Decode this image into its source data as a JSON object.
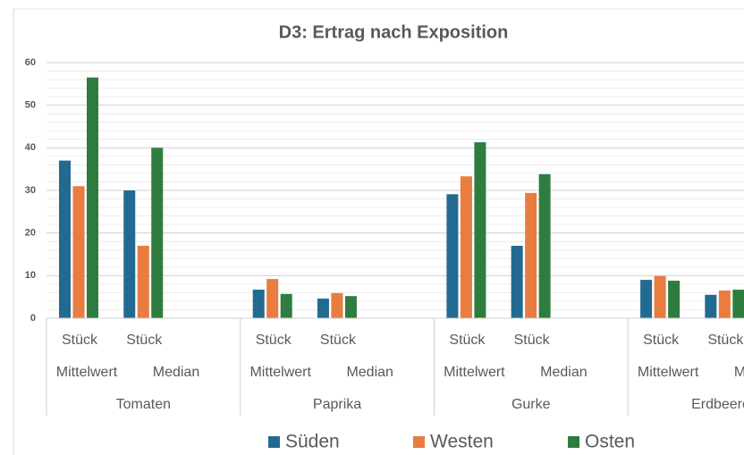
{
  "chart_data": {
    "type": "bar",
    "title": "D3: Ertrag nach Exposition",
    "category_levels": {
      "unit": [
        "Stück",
        "Stück",
        "Stück",
        "Stück",
        "Stück",
        "Stück",
        "Stück",
        "Stück"
      ],
      "stat": [
        "Mittelwert",
        "Median",
        "Mittelwert",
        "Median",
        "Mittelwert",
        "Median",
        "Mittelwert",
        "Median"
      ],
      "group": [
        "Tomaten",
        "Paprika",
        "Gurke",
        "Erdbeeren"
      ]
    },
    "series": [
      {
        "name": "Süden",
        "color": "#236a91",
        "values": [
          37,
          30,
          6.7,
          4.6,
          29.1,
          17,
          9,
          5.5
        ]
      },
      {
        "name": "Westen",
        "color": "#e97c3f",
        "values": [
          31,
          17,
          9.2,
          5.9,
          33.3,
          29.4,
          9.9,
          6.5
        ]
      },
      {
        "name": "Osten",
        "color": "#2e7d3f",
        "values": [
          56.5,
          40,
          5.7,
          5.2,
          41.3,
          33.8,
          8.8,
          6.7
        ]
      }
    ],
    "ylim": [
      0,
      60
    ],
    "yticks": [
      0,
      10,
      20,
      30,
      40,
      50,
      60
    ],
    "grid": true,
    "legend": "bottom"
  }
}
